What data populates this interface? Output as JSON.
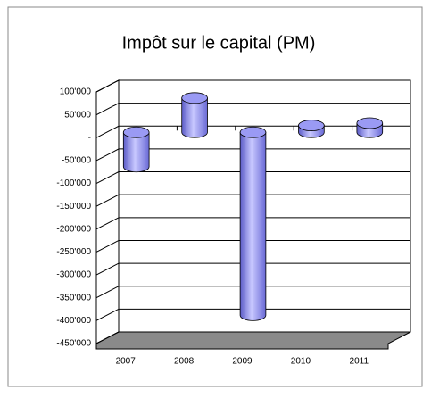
{
  "chart_data": {
    "type": "bar",
    "title": "Impôt sur le capital (PM)",
    "categories": [
      "2007",
      "2008",
      "2009",
      "2010",
      "2011"
    ],
    "values": [
      -75000,
      75000,
      -400000,
      15000,
      20000
    ],
    "color": "#9a9af4",
    "ylim": [
      -450000,
      100000
    ],
    "yticks": [
      {
        "value": 100000,
        "label": "100'000"
      },
      {
        "value": 50000,
        "label": "50'000"
      },
      {
        "value": 0,
        "label": "-"
      },
      {
        "value": -50000,
        "label": "-50'000"
      },
      {
        "value": -100000,
        "label": "-100'000"
      },
      {
        "value": -150000,
        "label": "-150'000"
      },
      {
        "value": -200000,
        "label": "-200'000"
      },
      {
        "value": -250000,
        "label": "-250'000"
      },
      {
        "value": -300000,
        "label": "-300'000"
      },
      {
        "value": -350000,
        "label": "-350'000"
      },
      {
        "value": -400000,
        "label": "-400'000"
      },
      {
        "value": -450000,
        "label": "-450'000"
      }
    ],
    "grid": true
  }
}
